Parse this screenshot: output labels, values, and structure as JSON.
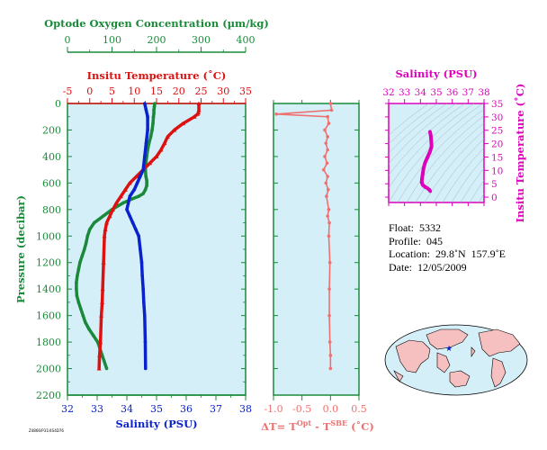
{
  "colors": {
    "oxygen": "#1a8a3a",
    "temperature": "#dd1111",
    "salinity": "#0a22cc",
    "delta_t": "#f07070",
    "ts_diagram": "#dd00bb",
    "panel_bg": "#d4eff8",
    "map_land": "#f7c0c0",
    "map_ocean": "#d4eff8",
    "map_marker": "#0a22cc"
  },
  "info": {
    "float_label": "Float:",
    "float_value": "5332",
    "profile_label": "Profile:",
    "profile_value": "045",
    "location_label": "Location:",
    "location_value": "29.8˚N  157.9˚E",
    "date_label": "Date:",
    "date_value": "12/05/2009"
  },
  "stamp": "Z4866/P31/4S4D76",
  "chart_data": [
    {
      "type": "line",
      "panel": "profile",
      "ylabel": "Pressure (decibar)",
      "ylim": [
        0,
        2200
      ],
      "yticks": [
        0,
        200,
        400,
        600,
        800,
        1000,
        1200,
        1400,
        1600,
        1800,
        2000,
        2200
      ],
      "grid": false,
      "axes": {
        "oxygen": {
          "label": "Optode Oxygen Concentration (µm/kg)",
          "lim": [
            0,
            400
          ],
          "ticks": [
            0,
            100,
            200,
            300,
            400
          ]
        },
        "temperature": {
          "label": "Insitu Temperature (˚C)",
          "lim": [
            -5,
            35
          ],
          "ticks": [
            -5,
            0,
            5,
            10,
            15,
            20,
            25,
            30,
            35
          ]
        },
        "salinity": {
          "label": "Salinity (PSU)",
          "lim": [
            32,
            38
          ],
          "ticks": [
            32,
            33,
            34,
            35,
            36,
            37,
            38
          ]
        }
      },
      "series": [
        {
          "name": "Optode Oxygen Concentration",
          "axis": "oxygen",
          "x": [
            196,
            195,
            194,
            194,
            193,
            192,
            190,
            187,
            183,
            180,
            178,
            176,
            175,
            176,
            178,
            178,
            178,
            175,
            170,
            160,
            145,
            125,
            100,
            80,
            60,
            50,
            45,
            42,
            38,
            33,
            28,
            25,
            22,
            20,
            20,
            21,
            25,
            30,
            35,
            40,
            48,
            58,
            68,
            78,
            88
          ],
          "y": [
            0,
            25,
            50,
            75,
            100,
            150,
            200,
            250,
            300,
            350,
            400,
            450,
            500,
            550,
            580,
            600,
            620,
            650,
            680,
            700,
            720,
            750,
            800,
            850,
            900,
            950,
            1000,
            1050,
            1100,
            1150,
            1200,
            1250,
            1300,
            1350,
            1400,
            1450,
            1500,
            1550,
            1600,
            1650,
            1700,
            1750,
            1800,
            1900,
            2000
          ]
        },
        {
          "name": "Insitu Temperature",
          "axis": "temperature",
          "x": [
            24.5,
            24.5,
            24.4,
            24.2,
            23.5,
            21.0,
            19.0,
            17.5,
            16.8,
            16.0,
            15.0,
            13.5,
            12.0,
            10.5,
            9.0,
            8.0,
            7.0,
            6.0,
            5.2,
            4.5,
            3.8,
            3.5,
            3.3,
            3.1,
            2.9,
            2.8,
            2.6,
            2.4,
            2.2,
            2.1
          ],
          "y": [
            0,
            50,
            70,
            80,
            100,
            150,
            200,
            250,
            300,
            350,
            400,
            450,
            500,
            550,
            600,
            650,
            700,
            750,
            800,
            850,
            900,
            950,
            1000,
            1200,
            1400,
            1500,
            1600,
            1800,
            1900,
            2000
          ]
        },
        {
          "name": "Salinity",
          "axis": "salinity",
          "x": [
            34.6,
            34.65,
            34.7,
            34.7,
            34.65,
            34.6,
            34.55,
            34.45,
            34.35,
            34.25,
            34.1,
            34.05,
            34.0,
            34.1,
            34.2,
            34.3,
            34.4,
            34.45,
            34.5,
            34.52,
            34.55,
            34.57,
            34.6,
            34.62,
            34.63
          ],
          "y": [
            0,
            50,
            100,
            200,
            300,
            400,
            500,
            550,
            600,
            650,
            700,
            750,
            800,
            850,
            900,
            950,
            1000,
            1100,
            1200,
            1300,
            1400,
            1500,
            1600,
            1800,
            2000
          ]
        }
      ]
    },
    {
      "type": "line",
      "panel": "delta_t",
      "xlabel": "ΔT= T",
      "xlabel_sup1": "Opt",
      "xlabel_mid": " - T",
      "xlabel_sup2": "SBE",
      "xlabel_end": " (˚C)",
      "xlim": [
        -1.0,
        0.5
      ],
      "xticks": [
        -1.0,
        -0.5,
        0.0,
        0.5
      ],
      "xtick_labels": [
        "-1.0",
        "-0.5",
        "0.0",
        "0.5"
      ],
      "ylim": [
        0,
        2200
      ],
      "series": [
        {
          "name": "ΔT",
          "x": [
            0.0,
            0.02,
            -0.95,
            -0.05,
            -0.03,
            -0.1,
            -0.05,
            -0.08,
            -0.05,
            -0.1,
            -0.06,
            -0.12,
            -0.05,
            -0.08,
            -0.04,
            -0.07,
            -0.03,
            -0.05,
            -0.02,
            -0.03,
            -0.01,
            -0.02,
            -0.02,
            -0.01,
            0.0,
            0.0
          ],
          "y": [
            0,
            50,
            80,
            100,
            150,
            200,
            250,
            300,
            350,
            400,
            450,
            500,
            550,
            600,
            650,
            700,
            800,
            850,
            900,
            1000,
            1200,
            1400,
            1600,
            1800,
            1900,
            2000
          ]
        }
      ]
    },
    {
      "type": "line",
      "panel": "ts",
      "xlabel": "Salinity (PSU)",
      "xlim": [
        32,
        38
      ],
      "xticks": [
        32,
        33,
        34,
        35,
        36,
        37,
        38
      ],
      "ylabel": "Insitu Temperature (˚C)",
      "ylim": [
        -2,
        35
      ],
      "yticks": [
        0,
        5,
        10,
        15,
        20,
        25,
        30,
        35
      ],
      "series": [
        {
          "name": "T-S",
          "x": [
            34.6,
            34.65,
            34.68,
            34.7,
            34.6,
            34.45,
            34.3,
            34.2,
            34.15,
            34.1,
            34.08,
            34.15,
            34.3,
            34.45,
            34.55,
            34.62
          ],
          "y": [
            24.5,
            23.0,
            21.0,
            19.0,
            17.0,
            15.0,
            13.0,
            11.0,
            9.0,
            7.0,
            5.5,
            4.5,
            3.8,
            3.3,
            2.8,
            2.2
          ]
        }
      ]
    }
  ],
  "map": {
    "marker_lat": 29.8,
    "marker_lon": 157.9
  }
}
